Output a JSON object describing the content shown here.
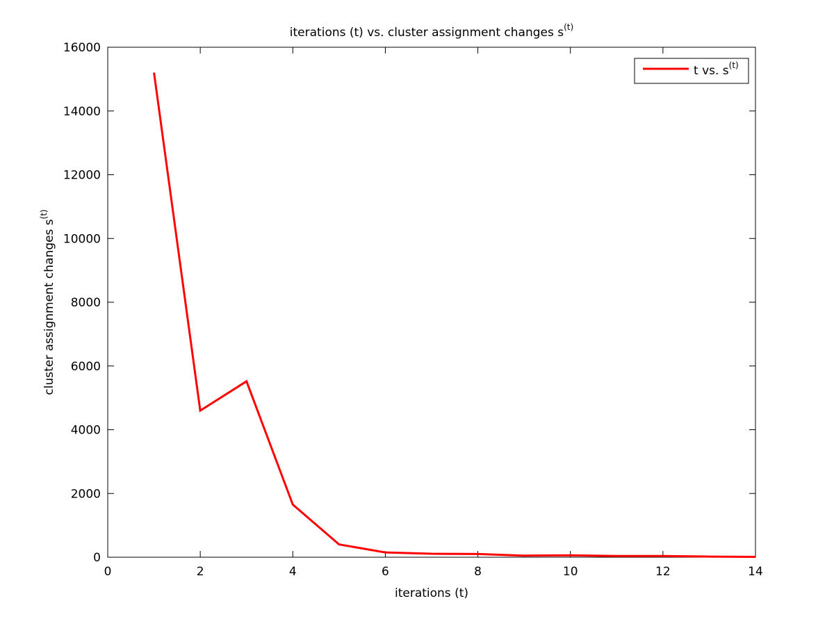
{
  "chart_data": {
    "type": "line",
    "title": {
      "main": "iterations (t) vs. cluster assignment changes s",
      "sup": "(t)"
    },
    "xlabel": "iterations (t)",
    "ylabel": {
      "main": "cluster assignment changes s",
      "sup": "(t)"
    },
    "xlim": [
      0,
      14
    ],
    "ylim": [
      0,
      16000
    ],
    "xticks": [
      0,
      2,
      4,
      6,
      8,
      10,
      12,
      14
    ],
    "yticks": [
      0,
      2000,
      4000,
      6000,
      8000,
      10000,
      12000,
      14000,
      16000
    ],
    "grid": false,
    "legend_position": "top-right",
    "series": [
      {
        "name": {
          "main": "t vs. s",
          "sup": "(t)"
        },
        "color": "#ff0000",
        "x": [
          1,
          2,
          3,
          4,
          5,
          6,
          7,
          8,
          9,
          10,
          11,
          12,
          13,
          14
        ],
        "y": [
          15200,
          4600,
          5520,
          1650,
          400,
          150,
          110,
          100,
          50,
          60,
          40,
          40,
          20,
          10
        ]
      }
    ]
  }
}
